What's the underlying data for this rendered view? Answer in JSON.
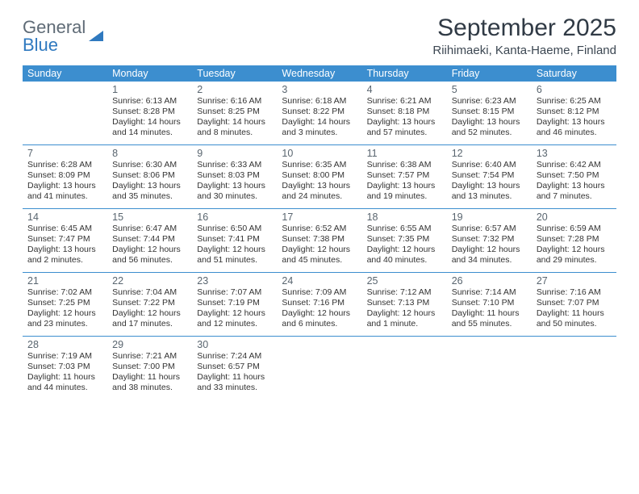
{
  "brand_general": "General",
  "brand_blue": "Blue",
  "title": "September 2025",
  "location": "Riihimaeki, Kanta-Haeme, Finland",
  "dow": [
    "Sunday",
    "Monday",
    "Tuesday",
    "Wednesday",
    "Thursday",
    "Friday",
    "Saturday"
  ],
  "header_bg": "#3c8ecf",
  "divider_color": "#3c8ecf",
  "weeks": [
    [
      null,
      {
        "n": "1",
        "sr": "6:13 AM",
        "ss": "8:28 PM",
        "dl": "14 hours and 14 minutes."
      },
      {
        "n": "2",
        "sr": "6:16 AM",
        "ss": "8:25 PM",
        "dl": "14 hours and 8 minutes."
      },
      {
        "n": "3",
        "sr": "6:18 AM",
        "ss": "8:22 PM",
        "dl": "14 hours and 3 minutes."
      },
      {
        "n": "4",
        "sr": "6:21 AM",
        "ss": "8:18 PM",
        "dl": "13 hours and 57 minutes."
      },
      {
        "n": "5",
        "sr": "6:23 AM",
        "ss": "8:15 PM",
        "dl": "13 hours and 52 minutes."
      },
      {
        "n": "6",
        "sr": "6:25 AM",
        "ss": "8:12 PM",
        "dl": "13 hours and 46 minutes."
      }
    ],
    [
      {
        "n": "7",
        "sr": "6:28 AM",
        "ss": "8:09 PM",
        "dl": "13 hours and 41 minutes."
      },
      {
        "n": "8",
        "sr": "6:30 AM",
        "ss": "8:06 PM",
        "dl": "13 hours and 35 minutes."
      },
      {
        "n": "9",
        "sr": "6:33 AM",
        "ss": "8:03 PM",
        "dl": "13 hours and 30 minutes."
      },
      {
        "n": "10",
        "sr": "6:35 AM",
        "ss": "8:00 PM",
        "dl": "13 hours and 24 minutes."
      },
      {
        "n": "11",
        "sr": "6:38 AM",
        "ss": "7:57 PM",
        "dl": "13 hours and 19 minutes."
      },
      {
        "n": "12",
        "sr": "6:40 AM",
        "ss": "7:54 PM",
        "dl": "13 hours and 13 minutes."
      },
      {
        "n": "13",
        "sr": "6:42 AM",
        "ss": "7:50 PM",
        "dl": "13 hours and 7 minutes."
      }
    ],
    [
      {
        "n": "14",
        "sr": "6:45 AM",
        "ss": "7:47 PM",
        "dl": "13 hours and 2 minutes."
      },
      {
        "n": "15",
        "sr": "6:47 AM",
        "ss": "7:44 PM",
        "dl": "12 hours and 56 minutes."
      },
      {
        "n": "16",
        "sr": "6:50 AM",
        "ss": "7:41 PM",
        "dl": "12 hours and 51 minutes."
      },
      {
        "n": "17",
        "sr": "6:52 AM",
        "ss": "7:38 PM",
        "dl": "12 hours and 45 minutes."
      },
      {
        "n": "18",
        "sr": "6:55 AM",
        "ss": "7:35 PM",
        "dl": "12 hours and 40 minutes."
      },
      {
        "n": "19",
        "sr": "6:57 AM",
        "ss": "7:32 PM",
        "dl": "12 hours and 34 minutes."
      },
      {
        "n": "20",
        "sr": "6:59 AM",
        "ss": "7:28 PM",
        "dl": "12 hours and 29 minutes."
      }
    ],
    [
      {
        "n": "21",
        "sr": "7:02 AM",
        "ss": "7:25 PM",
        "dl": "12 hours and 23 minutes."
      },
      {
        "n": "22",
        "sr": "7:04 AM",
        "ss": "7:22 PM",
        "dl": "12 hours and 17 minutes."
      },
      {
        "n": "23",
        "sr": "7:07 AM",
        "ss": "7:19 PM",
        "dl": "12 hours and 12 minutes."
      },
      {
        "n": "24",
        "sr": "7:09 AM",
        "ss": "7:16 PM",
        "dl": "12 hours and 6 minutes."
      },
      {
        "n": "25",
        "sr": "7:12 AM",
        "ss": "7:13 PM",
        "dl": "12 hours and 1 minute."
      },
      {
        "n": "26",
        "sr": "7:14 AM",
        "ss": "7:10 PM",
        "dl": "11 hours and 55 minutes."
      },
      {
        "n": "27",
        "sr": "7:16 AM",
        "ss": "7:07 PM",
        "dl": "11 hours and 50 minutes."
      }
    ],
    [
      {
        "n": "28",
        "sr": "7:19 AM",
        "ss": "7:03 PM",
        "dl": "11 hours and 44 minutes."
      },
      {
        "n": "29",
        "sr": "7:21 AM",
        "ss": "7:00 PM",
        "dl": "11 hours and 38 minutes."
      },
      {
        "n": "30",
        "sr": "7:24 AM",
        "ss": "6:57 PM",
        "dl": "11 hours and 33 minutes."
      },
      null,
      null,
      null,
      null
    ]
  ],
  "labels": {
    "sunrise": "Sunrise: ",
    "sunset": "Sunset: ",
    "daylight": "Daylight: "
  }
}
